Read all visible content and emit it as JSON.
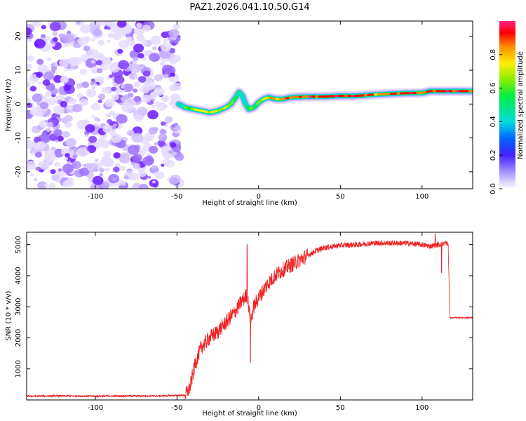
{
  "title": "PAZ1.2026.041.10.50.G14",
  "chart_data": [
    {
      "type": "heatmap",
      "name": "spectrogram",
      "xlabel": "Height of straight line (km)",
      "ylabel": "Frequency (Hz)",
      "xlim": [
        -142,
        131
      ],
      "ylim": [
        -25,
        24.5
      ],
      "xticks": [
        -100,
        -50,
        0,
        50,
        100
      ],
      "xtick_labels": [
        "-100",
        "-50",
        "0",
        "50",
        "100"
      ],
      "yticks": [
        -20,
        -10,
        0,
        10,
        20
      ],
      "ytick_labels": [
        "-20",
        "-10",
        "0",
        "10",
        "20"
      ],
      "noise_region_x": [
        -142,
        -48
      ],
      "ridge": {
        "x": [
          -49,
          -45,
          -40,
          -35,
          -30,
          -25,
          -20,
          -17,
          -14,
          -12,
          -10,
          -8,
          -6,
          -3,
          0,
          3,
          6,
          10,
          15,
          20,
          30,
          40,
          50,
          60,
          70,
          80,
          90,
          100,
          105,
          110,
          120,
          131
        ],
        "y": [
          0,
          -1,
          -1.5,
          -2,
          -2.5,
          -2,
          -1,
          0,
          2,
          3.5,
          2.5,
          0,
          -1.5,
          -1,
          0.5,
          1.5,
          2,
          1.5,
          1.5,
          2,
          2.2,
          2.2,
          2.4,
          2.4,
          2.8,
          3,
          3.2,
          3.3,
          3.8,
          3.8,
          3.8,
          3.8
        ],
        "amplitude": [
          0.5,
          0.6,
          0.7,
          0.75,
          0.8,
          0.8,
          0.75,
          0.7,
          0.6,
          0.45,
          0.5,
          0.6,
          0.6,
          0.65,
          0.7,
          0.75,
          0.8,
          0.85,
          0.85,
          0.9,
          0.95,
          0.95,
          0.95,
          0.95,
          0.9,
          0.95,
          0.95,
          0.9,
          0.95,
          0.95,
          0.95,
          0.95
        ]
      },
      "colorbar": {
        "label": "Normalized spectral amplitude",
        "ticks": [
          0.0,
          0.2,
          0.4,
          0.6,
          0.8
        ],
        "tick_labels": [
          "0.0",
          "0.2",
          "0.4",
          "0.6",
          "0.8"
        ],
        "range": [
          0,
          1
        ]
      }
    },
    {
      "type": "line",
      "name": "snr",
      "xlabel": "Height of straight line (km)",
      "ylabel": "SNR (10 * v/v)",
      "xlim": [
        -142,
        131
      ],
      "ylim": [
        0,
        5400
      ],
      "xticks": [
        -100,
        -50,
        0,
        50,
        100
      ],
      "xtick_labels": [
        "-100",
        "-50",
        "0",
        "50",
        "100"
      ],
      "yticks": [
        1000,
        2000,
        3000,
        4000,
        5000
      ],
      "ytick_labels": [
        "1000",
        "2000",
        "3000",
        "4000",
        "5000"
      ],
      "color": "#ee2222",
      "series": [
        {
          "name": "SNR",
          "x": [
            -142,
            -120,
            -100,
            -80,
            -60,
            -45,
            -42,
            -40,
            -38,
            -35,
            -30,
            -25,
            -20,
            -15,
            -10,
            -7,
            -5,
            -3,
            0,
            5,
            10,
            15,
            20,
            25,
            30,
            35,
            40,
            50,
            60,
            70,
            80,
            90,
            100,
            105,
            110,
            115,
            116,
            117,
            120,
            131
          ],
          "y": [
            120,
            130,
            120,
            130,
            130,
            150,
            400,
            900,
            1300,
            1700,
            2000,
            2200,
            2500,
            2800,
            3200,
            3400,
            2500,
            3000,
            3300,
            3700,
            4000,
            4200,
            4350,
            4500,
            4650,
            4800,
            4900,
            4980,
            5000,
            5050,
            5050,
            5050,
            5000,
            4950,
            5000,
            5050,
            5000,
            2650,
            2650,
            2650
          ]
        }
      ],
      "spikes": [
        {
          "x": -7,
          "y": 5000
        },
        {
          "x": -5,
          "y": 1200
        },
        {
          "x": 112,
          "y": 4100
        },
        {
          "x": 108,
          "y": 5350
        }
      ]
    }
  ]
}
